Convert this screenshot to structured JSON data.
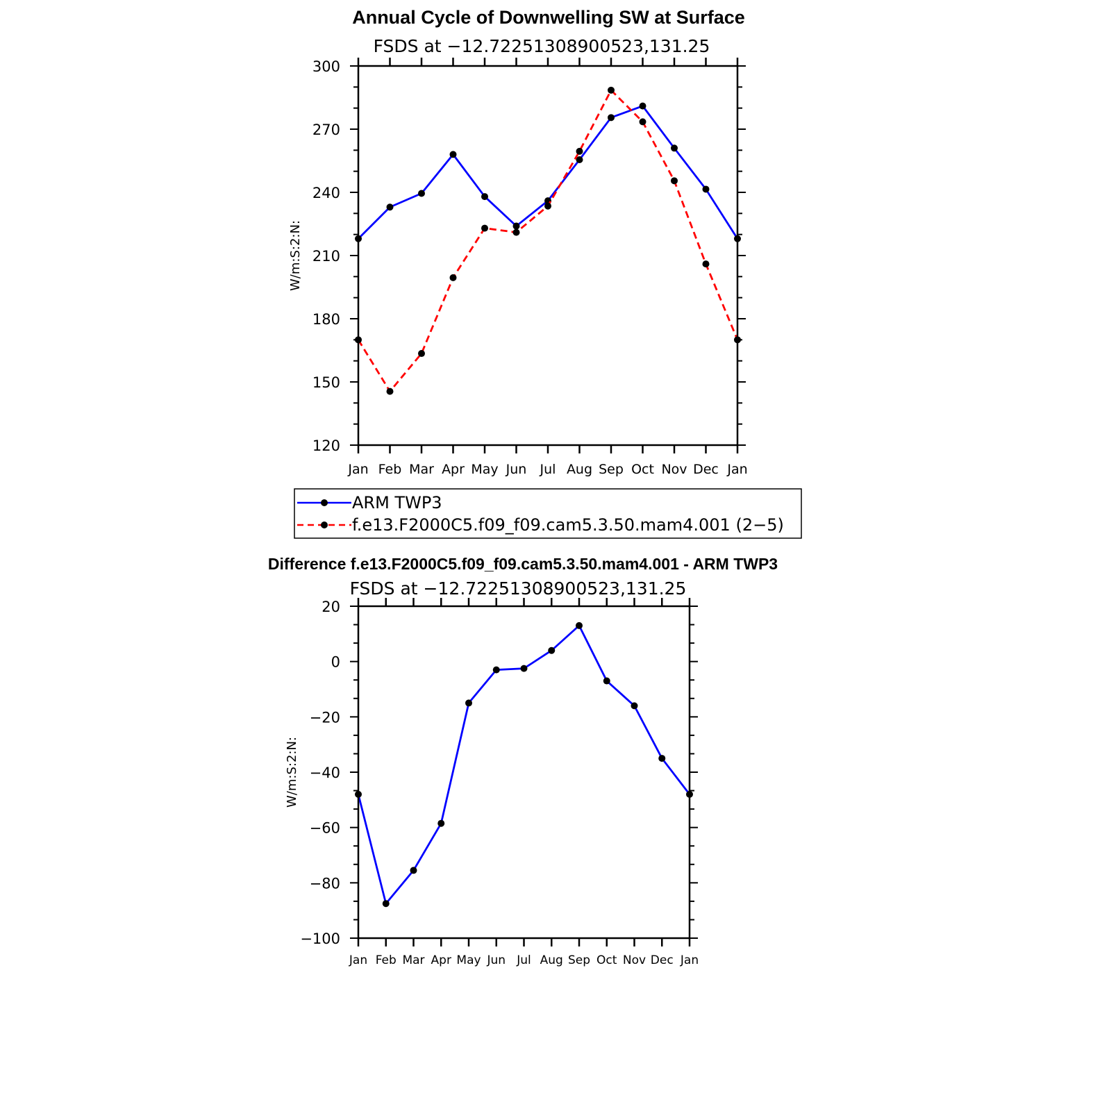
{
  "chart_data": [
    {
      "type": "line",
      "title": "Annual Cycle of Downwelling SW at Surface",
      "subtitle": "FSDS at −12.72251308900523,131.25",
      "ylabel": "W/m:S:2:N:",
      "xlabel": "",
      "categories": [
        "Jan",
        "Feb",
        "Mar",
        "Apr",
        "May",
        "Jun",
        "Jul",
        "Aug",
        "Sep",
        "Oct",
        "Nov",
        "Dec",
        "Jan"
      ],
      "ylim": [
        120,
        300
      ],
      "yticks": [
        120,
        150,
        180,
        210,
        240,
        270,
        300
      ],
      "ytick_labels": [
        "120",
        "150",
        "180",
        "210",
        "240",
        "270",
        "300"
      ],
      "series": [
        {
          "name": "ARM TWP3",
          "color": "#0000ff",
          "dash": "solid",
          "values": [
            218,
            233,
            239.5,
            258,
            238,
            224,
            236,
            255.5,
            275.5,
            281,
            261,
            241.5,
            218
          ]
        },
        {
          "name": "f.e13.F2000C5.f09_f09.cam5.3.50.mam4.001 (2−5)",
          "color": "#ff0000",
          "dash": "dashed",
          "values": [
            170,
            145.5,
            163.5,
            199.5,
            223,
            221,
            233.5,
            259.5,
            288.5,
            273.5,
            245.5,
            206,
            170
          ]
        }
      ],
      "legend": "below"
    },
    {
      "type": "line",
      "title": "Difference f.e13.F2000C5.f09_f09.cam5.3.50.mam4.001 - ARM TWP3",
      "subtitle": "FSDS at −12.72251308900523,131.25",
      "ylabel": "W/m:S:2:N:",
      "xlabel": "",
      "categories": [
        "Jan",
        "Feb",
        "Mar",
        "Apr",
        "May",
        "Jun",
        "Jul",
        "Aug",
        "Sep",
        "Oct",
        "Nov",
        "Dec",
        "Jan"
      ],
      "ylim": [
        -100,
        20
      ],
      "yticks": [
        -100,
        -80,
        -60,
        -40,
        -20,
        0,
        20
      ],
      "ytick_labels": [
        "−100",
        "−80",
        "−60",
        "−40",
        "−20",
        "0",
        "20"
      ],
      "series": [
        {
          "color": "#0000ff",
          "dash": "solid",
          "values": [
            -48,
            -87.5,
            -75.5,
            -58.5,
            -15,
            -3,
            -2.5,
            4,
            13,
            -7,
            -16,
            -35,
            -48
          ]
        }
      ]
    }
  ]
}
